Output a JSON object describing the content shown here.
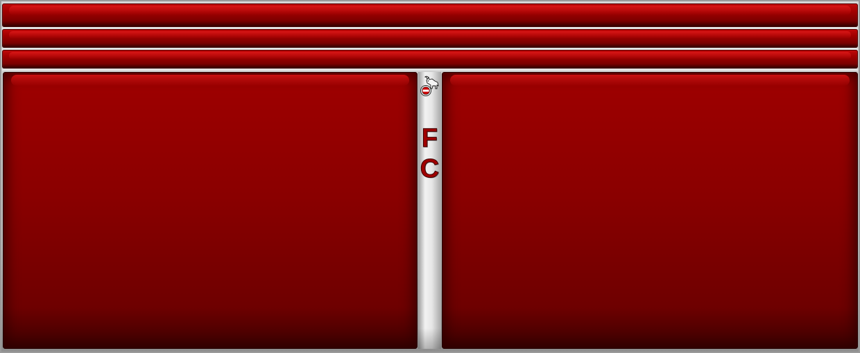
{
  "divider": {
    "letters": [
      "F",
      "C"
    ],
    "logo_icon": "goat-crest-icon"
  },
  "colors": {
    "primary_red": "#a00000",
    "dark_red": "#3a0000",
    "frame_gray": "#bdbdbd"
  }
}
